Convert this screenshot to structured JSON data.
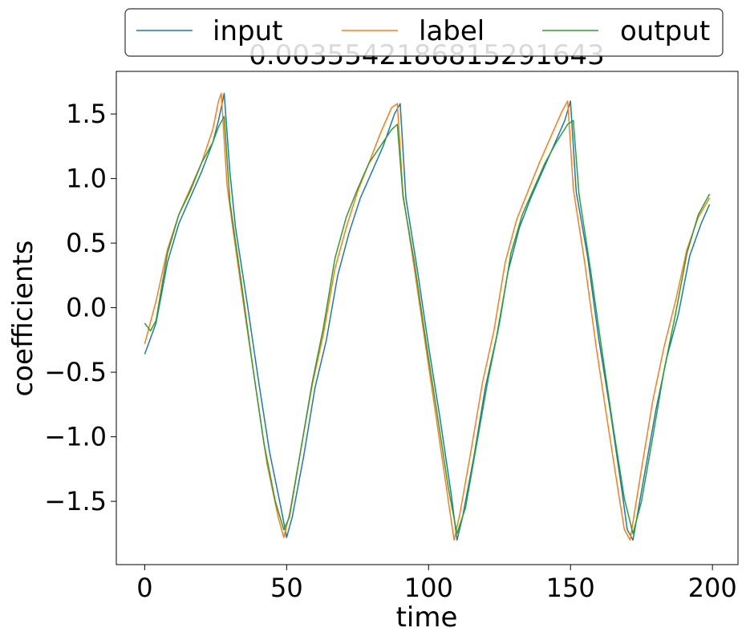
{
  "chart_data": {
    "type": "line",
    "title": "0.0035542186815291643",
    "xlabel": "time",
    "ylabel": "coefficients",
    "xlim": [
      -10,
      209
    ],
    "ylim": [
      -1.99,
      1.83
    ],
    "xticks": [
      0,
      50,
      100,
      150,
      200
    ],
    "xtick_labels": [
      "0",
      "50",
      "100",
      "150",
      "200"
    ],
    "yticks": [
      -1.5,
      -1.0,
      -0.5,
      0.0,
      0.5,
      1.0,
      1.5
    ],
    "ytick_labels": [
      "−1.5",
      "−1.0",
      "−0.5",
      "0.0",
      "0.5",
      "1.0",
      "1.5"
    ],
    "grid": false,
    "legend": {
      "placement": "top-center",
      "columns": 3
    },
    "series": [
      {
        "name": "input",
        "color": "#1f77b4",
        "points": [
          [
            0,
            -0.36
          ],
          [
            4,
            -0.12
          ],
          [
            8,
            0.35
          ],
          [
            12,
            0.65
          ],
          [
            16,
            0.85
          ],
          [
            20,
            1.05
          ],
          [
            24,
            1.28
          ],
          [
            26,
            1.45
          ],
          [
            28,
            1.66
          ],
          [
            30,
            1.05
          ],
          [
            32,
            0.62
          ],
          [
            36,
            0.05
          ],
          [
            40,
            -0.55
          ],
          [
            44,
            -1.12
          ],
          [
            48,
            -1.55
          ],
          [
            50,
            -1.78
          ],
          [
            52,
            -1.62
          ],
          [
            56,
            -1.15
          ],
          [
            60,
            -0.62
          ],
          [
            64,
            -0.25
          ],
          [
            68,
            0.25
          ],
          [
            72,
            0.58
          ],
          [
            76,
            0.85
          ],
          [
            80,
            1.05
          ],
          [
            84,
            1.25
          ],
          [
            88,
            1.5
          ],
          [
            90,
            1.58
          ],
          [
            92,
            0.85
          ],
          [
            96,
            0.3
          ],
          [
            100,
            -0.3
          ],
          [
            104,
            -0.85
          ],
          [
            108,
            -1.45
          ],
          [
            110,
            -1.8
          ],
          [
            112,
            -1.62
          ],
          [
            116,
            -1.15
          ],
          [
            120,
            -0.62
          ],
          [
            124,
            -0.22
          ],
          [
            128,
            0.28
          ],
          [
            132,
            0.62
          ],
          [
            136,
            0.85
          ],
          [
            140,
            1.05
          ],
          [
            144,
            1.25
          ],
          [
            148,
            1.45
          ],
          [
            150,
            1.6
          ],
          [
            152,
            0.9
          ],
          [
            156,
            0.4
          ],
          [
            160,
            -0.25
          ],
          [
            164,
            -0.8
          ],
          [
            168,
            -1.4
          ],
          [
            170,
            -1.72
          ],
          [
            172,
            -1.8
          ],
          [
            176,
            -1.3
          ],
          [
            180,
            -0.8
          ],
          [
            184,
            -0.38
          ],
          [
            188,
            -0.05
          ],
          [
            192,
            0.4
          ],
          [
            196,
            0.65
          ],
          [
            199,
            0.8
          ]
        ]
      },
      {
        "name": "label",
        "color": "#ff7f0e",
        "points": [
          [
            0,
            -0.28
          ],
          [
            4,
            0.05
          ],
          [
            8,
            0.45
          ],
          [
            12,
            0.72
          ],
          [
            16,
            0.92
          ],
          [
            20,
            1.12
          ],
          [
            24,
            1.38
          ],
          [
            26,
            1.6
          ],
          [
            27,
            1.66
          ],
          [
            29,
            0.95
          ],
          [
            31,
            0.62
          ],
          [
            35,
            0.0
          ],
          [
            39,
            -0.6
          ],
          [
            43,
            -1.2
          ],
          [
            47,
            -1.62
          ],
          [
            49,
            -1.78
          ],
          [
            51,
            -1.6
          ],
          [
            55,
            -1.1
          ],
          [
            59,
            -0.6
          ],
          [
            63,
            -0.2
          ],
          [
            67,
            0.3
          ],
          [
            71,
            0.62
          ],
          [
            75,
            0.9
          ],
          [
            79,
            1.12
          ],
          [
            83,
            1.35
          ],
          [
            87,
            1.55
          ],
          [
            89,
            1.58
          ],
          [
            91,
            0.88
          ],
          [
            95,
            0.3
          ],
          [
            99,
            -0.3
          ],
          [
            103,
            -0.9
          ],
          [
            107,
            -1.5
          ],
          [
            109,
            -1.8
          ],
          [
            111,
            -1.6
          ],
          [
            115,
            -1.1
          ],
          [
            119,
            -0.58
          ],
          [
            123,
            -0.18
          ],
          [
            127,
            0.35
          ],
          [
            131,
            0.68
          ],
          [
            135,
            0.9
          ],
          [
            139,
            1.12
          ],
          [
            143,
            1.32
          ],
          [
            147,
            1.52
          ],
          [
            149,
            1.6
          ],
          [
            151,
            0.92
          ],
          [
            155,
            0.35
          ],
          [
            159,
            -0.3
          ],
          [
            163,
            -0.88
          ],
          [
            167,
            -1.45
          ],
          [
            169,
            -1.72
          ],
          [
            171,
            -1.8
          ],
          [
            175,
            -1.25
          ],
          [
            179,
            -0.72
          ],
          [
            183,
            -0.3
          ],
          [
            187,
            0.05
          ],
          [
            191,
            0.45
          ],
          [
            195,
            0.7
          ],
          [
            199,
            0.85
          ]
        ]
      },
      {
        "name": "output",
        "color": "#2ca02c",
        "points": [
          [
            0,
            -0.12
          ],
          [
            2,
            -0.18
          ],
          [
            4,
            -0.1
          ],
          [
            8,
            0.42
          ],
          [
            12,
            0.72
          ],
          [
            16,
            0.9
          ],
          [
            20,
            1.12
          ],
          [
            24,
            1.28
          ],
          [
            26,
            1.4
          ],
          [
            28,
            1.48
          ],
          [
            30,
            0.82
          ],
          [
            34,
            0.2
          ],
          [
            38,
            -0.45
          ],
          [
            42,
            -1.05
          ],
          [
            46,
            -1.5
          ],
          [
            49,
            -1.72
          ],
          [
            51,
            -1.62
          ],
          [
            55,
            -1.1
          ],
          [
            59,
            -0.58
          ],
          [
            63,
            -0.15
          ],
          [
            67,
            0.38
          ],
          [
            71,
            0.7
          ],
          [
            75,
            0.92
          ],
          [
            79,
            1.12
          ],
          [
            83,
            1.25
          ],
          [
            87,
            1.38
          ],
          [
            89,
            1.42
          ],
          [
            91,
            0.86
          ],
          [
            95,
            0.35
          ],
          [
            99,
            -0.25
          ],
          [
            103,
            -0.82
          ],
          [
            107,
            -1.4
          ],
          [
            110,
            -1.75
          ],
          [
            113,
            -1.55
          ],
          [
            117,
            -1.05
          ],
          [
            121,
            -0.55
          ],
          [
            125,
            -0.12
          ],
          [
            129,
            0.42
          ],
          [
            133,
            0.72
          ],
          [
            137,
            0.92
          ],
          [
            141,
            1.12
          ],
          [
            145,
            1.28
          ],
          [
            149,
            1.42
          ],
          [
            151,
            1.45
          ],
          [
            153,
            0.88
          ],
          [
            157,
            0.3
          ],
          [
            161,
            -0.32
          ],
          [
            165,
            -0.92
          ],
          [
            169,
            -1.48
          ],
          [
            172,
            -1.75
          ],
          [
            175,
            -1.5
          ],
          [
            179,
            -1.0
          ],
          [
            183,
            -0.48
          ],
          [
            187,
            -0.05
          ],
          [
            191,
            0.42
          ],
          [
            195,
            0.72
          ],
          [
            199,
            0.88
          ]
        ]
      }
    ]
  }
}
